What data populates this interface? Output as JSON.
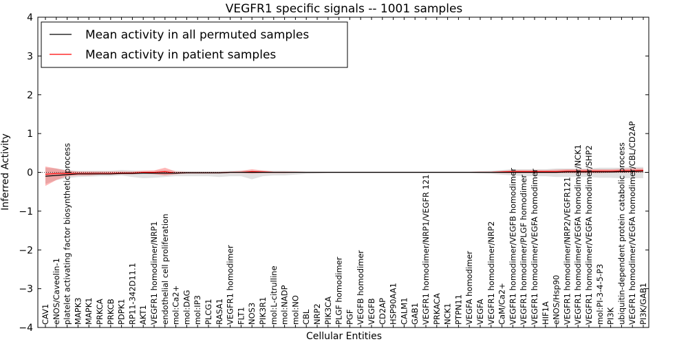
{
  "chart_data": {
    "type": "line",
    "title": "VEGFR1 specific signals -- 1001 samples",
    "xlabel": "Cellular Entities",
    "ylabel": "Inferred Activity",
    "ylim": [
      -4,
      4
    ],
    "yticks": [
      -4,
      -3,
      -2,
      -1,
      0,
      1,
      2,
      3,
      4
    ],
    "grid": false,
    "legend_position": "upper-left",
    "categories": [
      "CAV1",
      "eNOS/Caveolin-1",
      "platelet activating factor biosynthetic process",
      "MAPK3",
      "MAPK1",
      "PRKCA",
      "PRKCB",
      "PDPK1",
      "RP11-342D11.1",
      "AKT1",
      "VEGFR1 homodimer/NRP1",
      "endothelial cell proliferation",
      "mol:Ca2+",
      "mol:DAG",
      "mol:IP3",
      "PLCG1",
      "RASA1",
      "VEGFR1 homodimer",
      "FLT1",
      "NOS3",
      "PIK3R1",
      "mol:L-citrulline",
      "mol:NADP",
      "mol:NO",
      "CBL",
      "NRP2",
      "PIK3CA",
      "PLGF homodimer",
      "PGF",
      "VEGFB homodimer",
      "VEGFB",
      "CD2AP",
      "HSP90AA1",
      "CALM1",
      "GAB1",
      "VEGFR1 homodimer/NRP1/VEGFR 121",
      "PRKACA",
      "NCK1",
      "PTPN11",
      "VEGFA homodimer",
      "VEGFA",
      "VEGFR1 homodimer/NRP2",
      "CaM/Ca2+",
      "VEGFR1 homodimer/VEGFB homodimer",
      "VEGFR1 homodimer/PLGF homodimer",
      "VEGFR1 homodimer/VEGFA homodimer",
      "HIF1A",
      "eNOS/Hsp90",
      "VEGFR1 homodimer/NRP2/VEGFR121",
      "VEGFR1 homodimer/VEGFA homodimer/NCK1",
      "VEGFR1 homodimer/VEGFA homodimer/SHP2",
      "mol:PI-3-4-5-P3",
      "PI3K",
      "ubiquitin-dependent protein catabolic process",
      "VEGFR1 homodimer/VEGFA homodimer/CBL/CD2AP",
      "PI3K/GAB1"
    ],
    "series": [
      {
        "name": "Mean activity in all permuted samples",
        "color": "#000000",
        "values": [
          -0.1,
          -0.08,
          -0.06,
          -0.04,
          -0.04,
          -0.04,
          -0.04,
          -0.03,
          -0.03,
          -0.02,
          -0.02,
          -0.02,
          -0.02,
          -0.01,
          -0.01,
          -0.01,
          -0.01,
          0.0,
          0.0,
          0.0,
          0.0,
          0.0,
          0.0,
          0.0,
          0.0,
          0.0,
          0.0,
          0.0,
          0.0,
          0.0,
          0.0,
          0.0,
          0.0,
          0.0,
          0.0,
          0.0,
          0.0,
          0.0,
          0.0,
          0.0,
          0.0,
          0.0,
          0.0,
          0.0,
          0.0,
          0.0,
          0.0,
          0.0,
          0.01,
          0.01,
          0.01,
          0.01,
          0.01,
          0.02,
          0.02,
          0.03
        ],
        "band_lower": [
          -0.3,
          -0.2,
          -0.15,
          -0.12,
          -0.11,
          -0.1,
          -0.1,
          -0.08,
          -0.12,
          -0.15,
          -0.14,
          -0.12,
          -0.1,
          -0.1,
          -0.1,
          -0.1,
          -0.12,
          -0.1,
          -0.1,
          -0.18,
          -0.1,
          -0.08,
          -0.08,
          -0.06,
          -0.04,
          -0.03,
          -0.02,
          -0.02,
          -0.02,
          -0.02,
          -0.02,
          -0.02,
          -0.02,
          -0.02,
          -0.02,
          -0.02,
          -0.02,
          -0.02,
          -0.02,
          -0.02,
          -0.03,
          -0.04,
          -0.06,
          -0.08,
          -0.1,
          -0.1,
          -0.1,
          -0.12,
          -0.12,
          -0.12,
          -0.12,
          -0.14,
          -0.14,
          -0.15,
          -0.15,
          -0.15
        ],
        "band_upper": [
          0.12,
          0.1,
          0.06,
          0.04,
          0.04,
          0.04,
          0.04,
          0.06,
          0.05,
          0.04,
          0.04,
          0.06,
          0.04,
          0.03,
          0.03,
          0.03,
          0.03,
          0.04,
          0.04,
          0.05,
          0.04,
          0.04,
          0.04,
          0.03,
          0.02,
          0.02,
          0.02,
          0.02,
          0.02,
          0.02,
          0.02,
          0.02,
          0.02,
          0.02,
          0.02,
          0.02,
          0.02,
          0.02,
          0.02,
          0.02,
          0.03,
          0.04,
          0.06,
          0.08,
          0.08,
          0.08,
          0.08,
          0.1,
          0.1,
          0.1,
          0.1,
          0.12,
          0.12,
          0.12,
          0.14,
          0.14
        ]
      },
      {
        "name": "Mean activity in patient samples",
        "color": "#ff0000",
        "values": [
          -0.05,
          -0.03,
          -0.03,
          -0.03,
          -0.03,
          -0.03,
          -0.03,
          -0.02,
          -0.02,
          0.0,
          0.0,
          0.02,
          -0.02,
          -0.01,
          -0.01,
          -0.01,
          -0.01,
          0.0,
          0.0,
          0.02,
          0.01,
          0.0,
          0.0,
          0.0,
          0.0,
          0.0,
          0.0,
          0.0,
          0.0,
          0.0,
          0.0,
          0.0,
          0.0,
          0.0,
          0.0,
          0.0,
          0.0,
          0.0,
          0.0,
          0.0,
          0.0,
          0.0,
          0.01,
          0.02,
          0.02,
          0.02,
          0.02,
          0.02,
          0.03,
          0.03,
          0.03,
          0.03,
          0.03,
          0.04,
          0.04,
          0.05
        ],
        "band_lower": [
          -0.35,
          -0.2,
          -0.1,
          -0.08,
          -0.08,
          -0.06,
          -0.06,
          -0.05,
          -0.05,
          -0.03,
          -0.05,
          -0.08,
          -0.05,
          -0.03,
          -0.03,
          -0.03,
          -0.03,
          -0.02,
          -0.02,
          -0.03,
          -0.02,
          -0.02,
          -0.02,
          -0.01,
          -0.01,
          -0.01,
          -0.01,
          -0.01,
          -0.01,
          -0.01,
          -0.01,
          -0.01,
          -0.01,
          -0.01,
          -0.01,
          -0.01,
          -0.01,
          -0.01,
          -0.01,
          -0.01,
          -0.01,
          -0.01,
          -0.02,
          -0.02,
          -0.02,
          -0.02,
          -0.02,
          -0.02,
          -0.02,
          -0.02,
          -0.02,
          -0.02,
          -0.01,
          -0.01,
          -0.01,
          0.0
        ],
        "band_upper": [
          0.15,
          0.1,
          0.04,
          0.02,
          0.02,
          0.02,
          0.02,
          0.02,
          0.02,
          0.04,
          0.05,
          0.12,
          0.02,
          0.01,
          0.01,
          0.01,
          0.01,
          0.02,
          0.04,
          0.08,
          0.05,
          0.02,
          0.02,
          0.02,
          0.01,
          0.01,
          0.01,
          0.01,
          0.01,
          0.01,
          0.01,
          0.01,
          0.01,
          0.01,
          0.01,
          0.01,
          0.01,
          0.01,
          0.01,
          0.01,
          0.02,
          0.02,
          0.04,
          0.06,
          0.06,
          0.06,
          0.06,
          0.07,
          0.08,
          0.08,
          0.08,
          0.08,
          0.08,
          0.09,
          0.1,
          0.1
        ]
      }
    ]
  }
}
